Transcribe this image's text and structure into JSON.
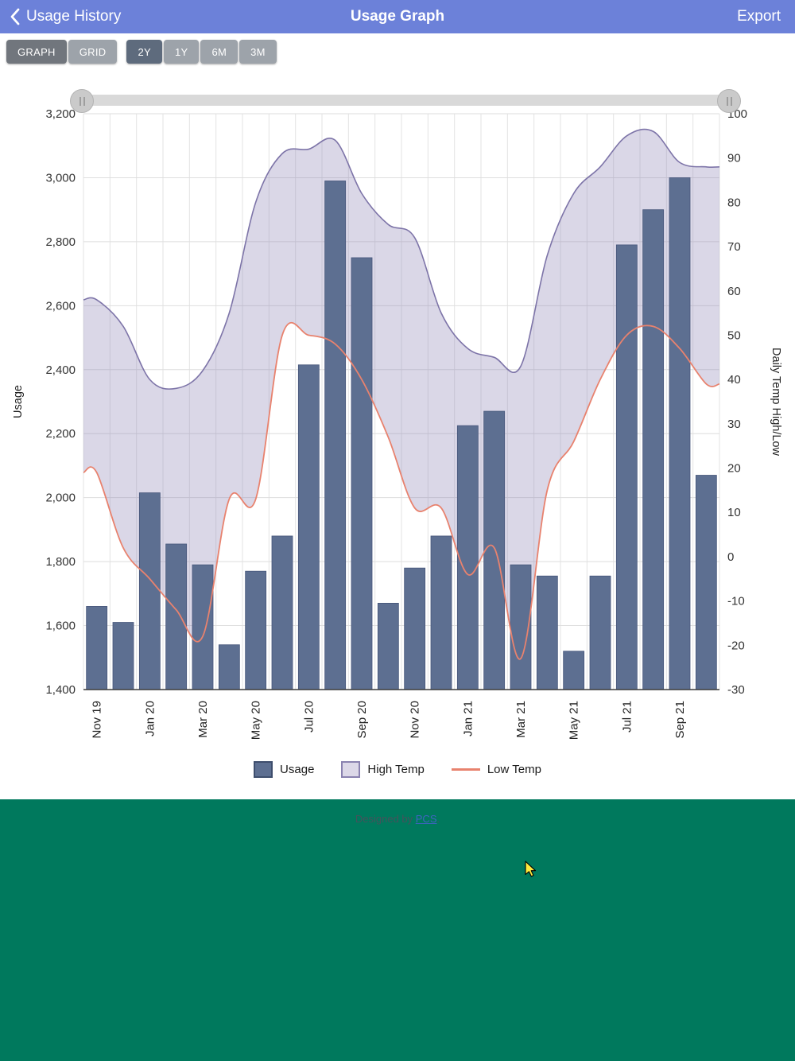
{
  "header": {
    "back_label": "Usage History",
    "title": "Usage Graph",
    "export_label": "Export"
  },
  "toolbar": {
    "view_buttons": [
      {
        "label": "GRAPH",
        "selected": true
      },
      {
        "label": "GRID",
        "selected": false
      }
    ],
    "range_buttons": [
      {
        "label": "2Y",
        "selected": true
      },
      {
        "label": "1Y",
        "selected": false
      },
      {
        "label": "6M",
        "selected": false
      },
      {
        "label": "3M",
        "selected": false
      }
    ]
  },
  "footer": {
    "designed_by_text": "Designed by ",
    "link_text": "PCS",
    "period": "."
  },
  "colors": {
    "header_bg": "#6c81d9",
    "footer_bg": "#00795d",
    "bar_fill": "#5d6f91",
    "bar_border": "#46567a",
    "band_fill": "#8d84b5",
    "band_line": "#7d74a8",
    "low_temp_line": "#e8826e"
  },
  "chart_data": {
    "type": "combo: bar (usage) + area band (high temp) + line (low temp)",
    "categories": [
      "Nov 19",
      "Dec 19",
      "Jan 20",
      "Feb 20",
      "Mar 20",
      "Apr 20",
      "May 20",
      "Jun 20",
      "Jul 20",
      "Aug 20",
      "Sep 20",
      "Oct 20",
      "Nov 20",
      "Dec 20",
      "Jan 21",
      "Feb 21",
      "Mar 21",
      "Apr 21",
      "May 21",
      "Jun 21",
      "Jul 21",
      "Aug 21",
      "Sep 21",
      "Oct 21"
    ],
    "x_axis_visible_labels": [
      "Nov 19",
      "Jan 20",
      "Mar 20",
      "May 20",
      "Jul 20",
      "Sep 20",
      "Nov 20",
      "Jan 21",
      "Mar 21",
      "May 21",
      "Jul 21",
      "Sep 21"
    ],
    "left_axis": {
      "title": "Usage",
      "min": 1400,
      "max": 3200,
      "step": 200
    },
    "right_axis": {
      "title": "Daily Temp High/Low",
      "min": -30,
      "max": 100,
      "step": 10
    },
    "series": [
      {
        "name": "Usage",
        "type": "bar",
        "axis": "left",
        "values": [
          1660,
          1610,
          2015,
          1855,
          1790,
          1540,
          1770,
          1880,
          2415,
          2990,
          2750,
          1670,
          1780,
          1880,
          2225,
          2270,
          1790,
          1755,
          1520,
          1755,
          2790,
          2900,
          3000,
          2070
        ]
      },
      {
        "name": "High Temp",
        "type": "area_band_top",
        "axis": "right",
        "values": [
          58,
          52,
          40,
          38,
          42,
          55,
          80,
          91,
          92,
          94,
          82,
          75,
          72,
          55,
          47,
          45,
          43,
          68,
          82,
          88,
          95,
          96,
          89,
          88
        ]
      },
      {
        "name": "Low Temp",
        "type": "line",
        "axis": "right",
        "values": [
          19,
          2,
          -5,
          -12,
          -18,
          13,
          13,
          50,
          50,
          48,
          40,
          27,
          11,
          11,
          -4,
          2,
          -23,
          15,
          26,
          40,
          50,
          52,
          47,
          39
        ]
      }
    ],
    "legend": [
      {
        "label": "Usage"
      },
      {
        "label": "High Temp"
      },
      {
        "label": "Low Temp"
      }
    ]
  }
}
